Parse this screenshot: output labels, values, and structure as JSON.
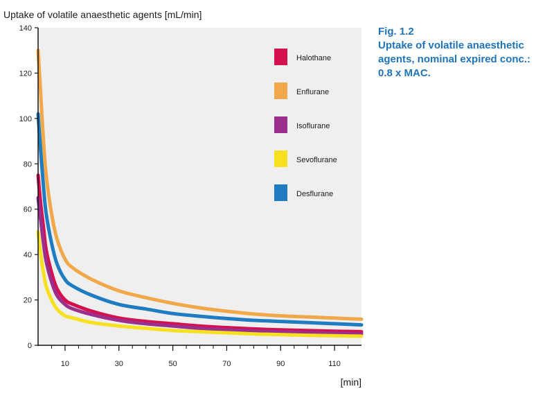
{
  "caption": {
    "fig": "Fig. 1.2",
    "lines": [
      "Uptake of volatile anaesthetic",
      "agents, nominal expired conc.:",
      "0.8 x MAC."
    ]
  },
  "chart_data": {
    "type": "line",
    "title": "",
    "ylabel": "Uptake of volatile anaesthetic agents [mL/min]",
    "xlabel": "[min]",
    "xlim": [
      0,
      120
    ],
    "ylim": [
      0,
      140
    ],
    "xticks": [
      10,
      30,
      50,
      70,
      90,
      110
    ],
    "yticks": [
      0,
      20,
      40,
      60,
      80,
      100,
      120,
      140
    ],
    "grid": false,
    "background": "#efefef",
    "legend": "top-right",
    "series": [
      {
        "name": "Halothane",
        "color": "#d5104f",
        "x": [
          0,
          1,
          2,
          3,
          5,
          7,
          10,
          13,
          20,
          30,
          40,
          50,
          60,
          70,
          80,
          90,
          100,
          110,
          120
        ],
        "y": [
          75,
          62,
          52,
          42,
          32,
          25,
          20,
          18,
          15,
          12,
          10.5,
          9.5,
          8.5,
          7.8,
          7.2,
          6.8,
          6.5,
          6.2,
          6
        ]
      },
      {
        "name": "Enflurane",
        "color": "#f0a84a",
        "x": [
          0,
          1,
          2,
          3,
          5,
          7,
          10,
          13,
          20,
          30,
          40,
          50,
          60,
          70,
          80,
          90,
          100,
          110,
          120
        ],
        "y": [
          130,
          110,
          90,
          75,
          58,
          47,
          38,
          34,
          29,
          24,
          21,
          18.5,
          16.5,
          15,
          13.8,
          13,
          12.5,
          12,
          11.5
        ]
      },
      {
        "name": "Isoflurane",
        "color": "#9b2f8c",
        "x": [
          0,
          1,
          2,
          3,
          5,
          7,
          10,
          13,
          20,
          30,
          40,
          50,
          60,
          70,
          80,
          90,
          100,
          110,
          120
        ],
        "y": [
          65,
          55,
          45,
          37,
          28,
          22,
          18,
          16,
          13.5,
          11,
          9.5,
          8.5,
          7.5,
          6.8,
          6.3,
          5.9,
          5.6,
          5.3,
          5
        ]
      },
      {
        "name": "Sevoflurane",
        "color": "#f7e020",
        "x": [
          0,
          1,
          2,
          3,
          5,
          7,
          10,
          13,
          20,
          30,
          40,
          50,
          60,
          70,
          80,
          90,
          100,
          110,
          120
        ],
        "y": [
          50,
          40,
          32,
          26,
          20,
          16,
          13,
          12,
          10,
          8.5,
          7.5,
          6.5,
          6,
          5.5,
          5,
          4.7,
          4.4,
          4.2,
          4
        ]
      },
      {
        "name": "Desflurane",
        "color": "#1f7cc0",
        "x": [
          0,
          1,
          2,
          3,
          5,
          7,
          10,
          13,
          20,
          30,
          40,
          50,
          60,
          70,
          80,
          90,
          100,
          110,
          120
        ],
        "y": [
          102,
          85,
          70,
          58,
          45,
          36,
          29,
          26,
          22,
          18,
          16,
          14,
          12.8,
          11.8,
          11,
          10.5,
          10,
          9.5,
          9
        ]
      }
    ]
  }
}
